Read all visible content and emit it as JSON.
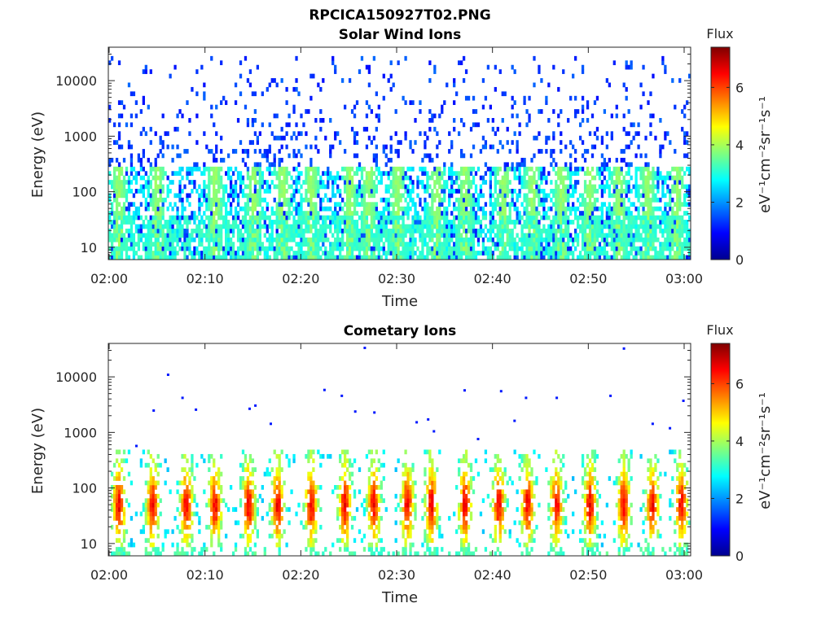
{
  "figure_title": "RPCICA150927T02.PNG",
  "chart_data": [
    {
      "type": "heatmap",
      "title": "Solar Wind Ions",
      "xlabel": "Time",
      "ylabel": "Energy (eV)",
      "x_ticks": [
        "02:00",
        "02:10",
        "02:20",
        "02:30",
        "02:40",
        "02:50",
        "03:00"
      ],
      "x_range": [
        "02:00",
        "03:00"
      ],
      "y_scale": "log",
      "y_ticks": [
        10,
        100,
        1000,
        10000
      ],
      "y_tick_labels": [
        "10",
        "100",
        "1000",
        "10000"
      ],
      "y_range": [
        6,
        40000
      ],
      "colorbar": {
        "title": "Flux",
        "label": "eV⁻¹cm⁻²sr⁻¹s⁻¹",
        "range": [
          0,
          7.4
        ],
        "ticks": [
          0,
          2,
          4,
          6
        ],
        "tick_labels": [
          "0",
          "2",
          "4",
          "6"
        ],
        "colormap": "jet"
      },
      "bursts_minutes": [
        1,
        5,
        11,
        15,
        18,
        21,
        25,
        27,
        30,
        34,
        37,
        41,
        44,
        47,
        50,
        53,
        56,
        59
      ],
      "background_energy_range_eV": [
        6,
        30000
      ],
      "typical_flux": {
        "low_energy": 3.0,
        "high_energy": 1.0,
        "burst_peak": 3.5
      }
    },
    {
      "type": "heatmap",
      "title": "Cometary Ions",
      "xlabel": "Time",
      "ylabel": "Energy (eV)",
      "x_ticks": [
        "02:00",
        "02:10",
        "02:20",
        "02:30",
        "02:40",
        "02:50",
        "03:00"
      ],
      "x_range": [
        "02:00",
        "03:00"
      ],
      "y_scale": "log",
      "y_ticks": [
        10,
        100,
        1000,
        10000
      ],
      "y_tick_labels": [
        "10",
        "100",
        "1000",
        "10000"
      ],
      "y_range": [
        6,
        40000
      ],
      "colorbar": {
        "title": "Flux",
        "label": "eV⁻¹cm⁻²sr⁻¹s⁻¹",
        "range": [
          0,
          7.4
        ],
        "ticks": [
          0,
          2,
          4,
          6
        ],
        "tick_labels": [
          "0",
          "2",
          "4",
          "6"
        ],
        "colormap": "jet"
      },
      "bursts_minutes": [
        1,
        4.5,
        8,
        11,
        14.5,
        17.5,
        21,
        24.5,
        27.5,
        31,
        33.5,
        37,
        40.5,
        43.5,
        46.5,
        50,
        53.5,
        56.5,
        59.5
      ],
      "burst_energy_range_eV": [
        8,
        500
      ],
      "burst_peak_energy_eV": 50,
      "burst_peak_flux": 6.2,
      "sparse_high_energy_points": [
        {
          "t": 2.8,
          "e": 600
        },
        {
          "t": 4.6,
          "e": 2600
        },
        {
          "t": 6.1,
          "e": 11500
        },
        {
          "t": 7.6,
          "e": 4400
        },
        {
          "t": 9.0,
          "e": 2700
        },
        {
          "t": 14.6,
          "e": 2800
        },
        {
          "t": 15.2,
          "e": 3200
        },
        {
          "t": 16.8,
          "e": 1500
        },
        {
          "t": 22.4,
          "e": 6100
        },
        {
          "t": 24.2,
          "e": 4800
        },
        {
          "t": 25.6,
          "e": 2500
        },
        {
          "t": 26.6,
          "e": 35000
        },
        {
          "t": 27.6,
          "e": 2400
        },
        {
          "t": 32.0,
          "e": 1600
        },
        {
          "t": 33.2,
          "e": 1800
        },
        {
          "t": 33.8,
          "e": 1100
        },
        {
          "t": 37.0,
          "e": 6000
        },
        {
          "t": 38.4,
          "e": 800
        },
        {
          "t": 40.8,
          "e": 5800
        },
        {
          "t": 42.2,
          "e": 1700
        },
        {
          "t": 43.4,
          "e": 4400
        },
        {
          "t": 46.6,
          "e": 4400
        },
        {
          "t": 52.2,
          "e": 4800
        },
        {
          "t": 53.6,
          "e": 34000
        },
        {
          "t": 56.6,
          "e": 1500
        },
        {
          "t": 58.4,
          "e": 1250
        },
        {
          "t": 59.8,
          "e": 3900
        }
      ]
    }
  ]
}
